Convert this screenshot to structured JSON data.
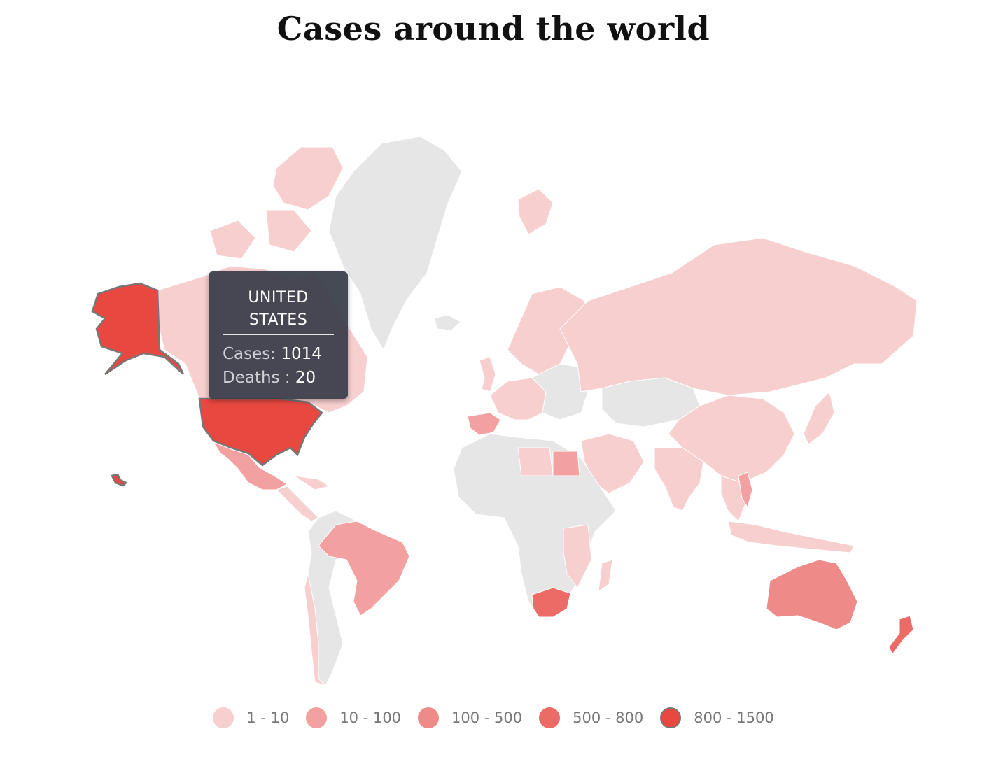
{
  "title": "Cases around the world",
  "tooltip": {
    "country": "UNITED STATES",
    "cases_label": "Cases:",
    "cases_value": "1014",
    "deaths_label": "Deaths",
    "deaths_sep": ":",
    "deaths_value": "20"
  },
  "legend": [
    {
      "label": "1 - 10",
      "color": "#f7cfcf"
    },
    {
      "label": "10 - 100",
      "color": "#f2a0a0"
    },
    {
      "label": "100 - 500",
      "color": "#ee8a87"
    },
    {
      "label": "500 - 800",
      "color": "#ec6b66"
    },
    {
      "label": "800 - 1500",
      "color": "#e84840"
    }
  ],
  "colors": {
    "no_data": "#e6e6e6",
    "highlight_border": "#777777"
  },
  "regions": {
    "greenland": {
      "bin": "none"
    },
    "canada": {
      "bin": "1 - 10"
    },
    "usa": {
      "bin": "800 - 1500",
      "selected": true
    },
    "mexico": {
      "bin": "10 - 100"
    },
    "central_america": {
      "bin": "1 - 10"
    },
    "brazil": {
      "bin": "10 - 100"
    },
    "south_america_rest": {
      "bin": "none"
    },
    "chile_argentina_coast": {
      "bin": "1 - 10"
    },
    "europe_west": {
      "bin": "1 - 10"
    },
    "spain": {
      "bin": "10 - 100"
    },
    "europe_east": {
      "bin": "none"
    },
    "russia": {
      "bin": "1 - 10"
    },
    "kazakhstan": {
      "bin": "none"
    },
    "china": {
      "bin": "1 - 10"
    },
    "india": {
      "bin": "1 - 10"
    },
    "africa": {
      "bin": "none"
    },
    "egypt": {
      "bin": "10 - 100"
    },
    "libya": {
      "bin": "1 - 10"
    },
    "east_africa": {
      "bin": "1 - 10"
    },
    "south_africa": {
      "bin": "500 - 800"
    },
    "madagascar": {
      "bin": "1 - 10"
    },
    "middle_east": {
      "bin": "1 - 10"
    },
    "southeast_asia": {
      "bin": "1 - 10"
    },
    "vietnam": {
      "bin": "10 - 100"
    },
    "japan": {
      "bin": "1 - 10"
    },
    "indonesia": {
      "bin": "1 - 10"
    },
    "australia": {
      "bin": "100 - 500"
    },
    "new_zealand": {
      "bin": "500 - 800"
    },
    "scandinavia": {
      "bin": "1 - 10"
    },
    "uk": {
      "bin": "1 - 10"
    },
    "iceland": {
      "bin": "none"
    },
    "svalbard": {
      "bin": "1 - 10"
    }
  }
}
